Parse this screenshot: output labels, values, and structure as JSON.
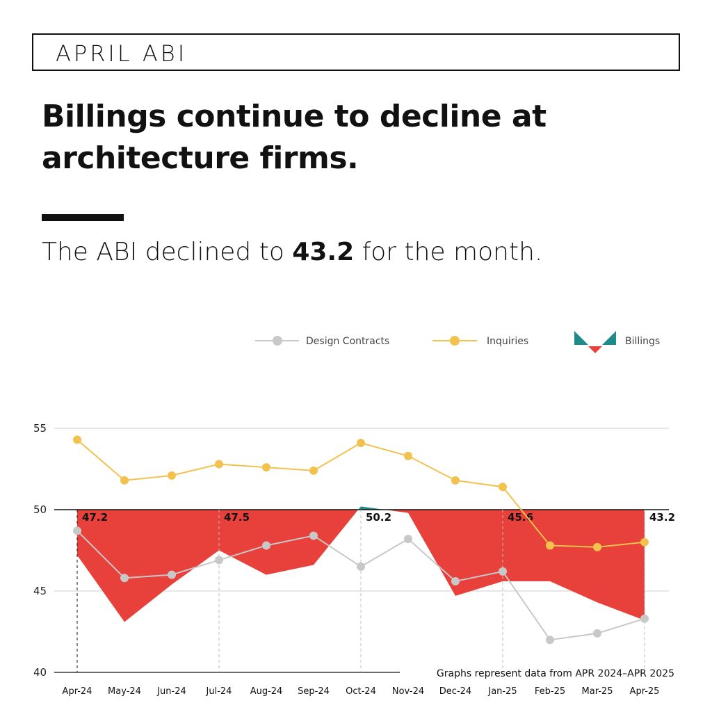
{
  "header": {
    "eyebrow": "APRIL ABI",
    "headline": "Billings continue to decline at architecture firms.",
    "sub_prefix": "The ABI declined to ",
    "sub_value": "43.2",
    "sub_suffix": " for the month."
  },
  "legend": {
    "design_contracts": "Design Contracts",
    "inquiries": "Inquiries",
    "billings": "Billings"
  },
  "colors": {
    "billings_below": "#e8403a",
    "billings_above": "#1e8a8a",
    "inquiries": "#f2c14e",
    "design_contracts": "#c8c8c8",
    "grid": "#cccccc"
  },
  "chart_data": {
    "type": "line",
    "categories": [
      "Apr-24",
      "May-24",
      "Jun-24",
      "Jul-24",
      "Aug-24",
      "Sep-24",
      "Oct-24",
      "Nov-24",
      "Dec-24",
      "Jan-25",
      "Feb-25",
      "Mar-25",
      "Apr-25"
    ],
    "baseline": 50,
    "ylim": [
      40,
      56
    ],
    "yticks": [
      40,
      45,
      50,
      55
    ],
    "series": [
      {
        "name": "Billings",
        "kind": "area-vs-baseline",
        "values": [
          47.2,
          43.1,
          45.4,
          47.5,
          46.0,
          46.6,
          50.2,
          49.8,
          44.7,
          45.6,
          45.6,
          44.3,
          43.2
        ]
      },
      {
        "name": "Inquiries",
        "kind": "line",
        "values": [
          54.3,
          51.8,
          52.1,
          52.8,
          52.6,
          52.4,
          54.1,
          53.3,
          51.8,
          51.4,
          47.8,
          47.7,
          48.0
        ]
      },
      {
        "name": "Design Contracts",
        "kind": "line",
        "values": [
          48.7,
          45.8,
          46.0,
          46.9,
          47.8,
          48.4,
          46.5,
          48.2,
          45.6,
          46.2,
          42.0,
          42.4,
          43.3
        ]
      }
    ],
    "annotations": [
      {
        "index": 0,
        "text": "47.2"
      },
      {
        "index": 3,
        "text": "47.5"
      },
      {
        "index": 6,
        "text": "50.2"
      },
      {
        "index": 9,
        "text": "45.6"
      },
      {
        "index": 12,
        "text": "43.2"
      }
    ],
    "footnote": "Graphs represent data from APR 2024–APR 2025"
  }
}
